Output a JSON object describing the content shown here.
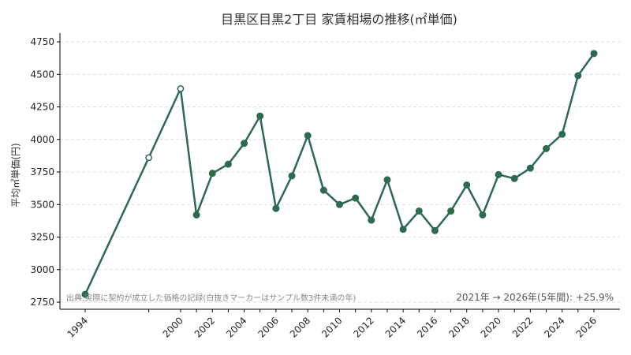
{
  "chart_data": {
    "type": "line",
    "title": "目黒区目黒2丁目 家賃相場の推移(㎡単価)",
    "xlabel": "",
    "ylabel": "平均㎡単価(円)",
    "x_tick_labels": [
      "1994",
      "2000",
      "2002",
      "2004",
      "2006",
      "2008",
      "2010",
      "2012",
      "2014",
      "2016",
      "2018",
      "2020",
      "2022",
      "2024",
      "2026"
    ],
    "y_ticks": [
      2750,
      3000,
      3250,
      3500,
      3750,
      4000,
      4250,
      4500,
      4750
    ],
    "ylim": [
      2720,
      4750
    ],
    "xlim": [
      1994,
      2026
    ],
    "grid": "horizontal dashed",
    "line_color": "#2d6a4f",
    "series": [
      {
        "points": [
          {
            "x": 1994,
            "y": 2810,
            "sparse": false
          },
          {
            "x": 1998,
            "y": 3860,
            "sparse": true
          },
          {
            "x": 2000,
            "y": 4390,
            "sparse": true
          },
          {
            "x": 2001,
            "y": 3420,
            "sparse": false
          },
          {
            "x": 2002,
            "y": 3740,
            "sparse": false
          },
          {
            "x": 2003,
            "y": 3810,
            "sparse": false
          },
          {
            "x": 2004,
            "y": 3970,
            "sparse": false
          },
          {
            "x": 2005,
            "y": 4180,
            "sparse": false
          },
          {
            "x": 2006,
            "y": 3470,
            "sparse": false
          },
          {
            "x": 2007,
            "y": 3720,
            "sparse": false
          },
          {
            "x": 2008,
            "y": 4030,
            "sparse": false
          },
          {
            "x": 2009,
            "y": 3610,
            "sparse": false
          },
          {
            "x": 2010,
            "y": 3500,
            "sparse": false
          },
          {
            "x": 2011,
            "y": 3550,
            "sparse": false
          },
          {
            "x": 2012,
            "y": 3380,
            "sparse": false
          },
          {
            "x": 2013,
            "y": 3690,
            "sparse": false
          },
          {
            "x": 2014,
            "y": 3310,
            "sparse": false
          },
          {
            "x": 2015,
            "y": 3450,
            "sparse": false
          },
          {
            "x": 2016,
            "y": 3300,
            "sparse": false
          },
          {
            "x": 2017,
            "y": 3450,
            "sparse": false
          },
          {
            "x": 2018,
            "y": 3650,
            "sparse": false
          },
          {
            "x": 2019,
            "y": 3420,
            "sparse": false
          },
          {
            "x": 2020,
            "y": 3730,
            "sparse": false
          },
          {
            "x": 2021,
            "y": 3700,
            "sparse": false
          },
          {
            "x": 2022,
            "y": 3780,
            "sparse": false
          },
          {
            "x": 2023,
            "y": 3930,
            "sparse": false
          },
          {
            "x": 2024,
            "y": 4040,
            "sparse": false
          },
          {
            "x": 2025,
            "y": 4490,
            "sparse": false
          },
          {
            "x": 2026,
            "y": 4660,
            "sparse": false
          }
        ]
      }
    ],
    "annotations": {
      "source_note": "出典:実際に契約が成立した価格の記録(白抜きマーカーはサンプル数3件未満の年)",
      "growth_note": "2021年 → 2026年(5年間): +25.9%"
    }
  }
}
